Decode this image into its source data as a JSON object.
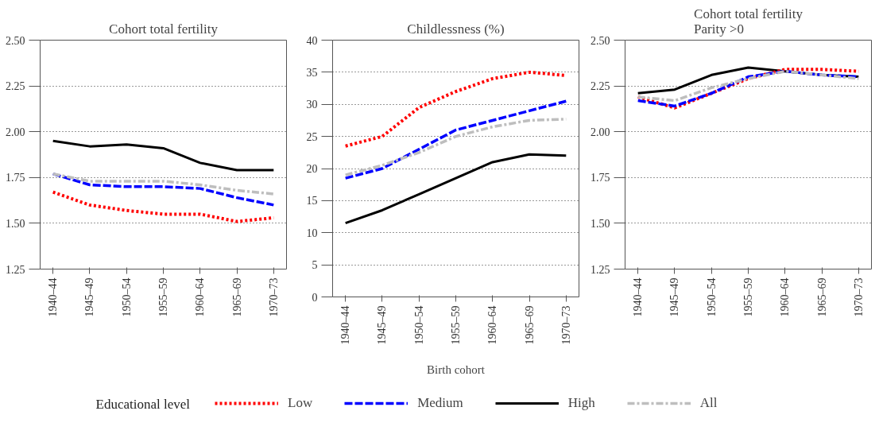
{
  "chart_data": [
    {
      "type": "line",
      "title": "Cohort total fertility",
      "categories": [
        "1940–44",
        "1945–49",
        "1950–54",
        "1955–59",
        "1960–64",
        "1965–69",
        "1970–73"
      ],
      "ylim": [
        1.25,
        2.5
      ],
      "yticks": [
        1.25,
        {
          "value": 1.5,
          "label": "1.50"
        },
        1.75,
        {
          "value": 2.0,
          "label": "2.00"
        },
        2.25,
        {
          "value": 2.5,
          "label": "2.50"
        }
      ],
      "grid": "y",
      "legend": false,
      "series": [
        {
          "color": "#ff0000",
          "line_style": "dotted",
          "values": [
            1.67,
            1.6,
            1.57,
            1.55,
            1.55,
            1.51,
            1.53
          ]
        },
        {
          "color": "#0000ff",
          "line_style": "dashed",
          "values": [
            1.77,
            1.71,
            1.7,
            1.7,
            1.69,
            1.64,
            1.6
          ]
        },
        {
          "color": "#000000",
          "line_style": "solid",
          "values": [
            1.95,
            1.92,
            1.93,
            1.91,
            1.83,
            1.79,
            1.79
          ]
        },
        {
          "color": "#bebebe",
          "line_style": "dashdot",
          "values": [
            1.77,
            1.73,
            1.73,
            1.73,
            1.71,
            1.68,
            1.66
          ]
        }
      ]
    },
    {
      "type": "line",
      "title": "Childlessness (%)",
      "xlabel": "Birth cohort",
      "legend_title": "Educational level",
      "categories": [
        "1940–44",
        "1945–49",
        "1950–54",
        "1955–59",
        "1960–64",
        "1965–69",
        "1970–73"
      ],
      "ylim": [
        0,
        40
      ],
      "yticks": [
        0,
        5,
        10,
        15,
        20,
        25,
        30,
        35,
        40
      ],
      "grid": "y",
      "legend": "bottom",
      "series": [
        {
          "name": "Low",
          "color": "#ff0000",
          "line_style": "dotted",
          "values": [
            23.5,
            25,
            29.5,
            32,
            34,
            35,
            34.5
          ]
        },
        {
          "name": "Medium",
          "color": "#0000ff",
          "line_style": "dashed",
          "values": [
            18.5,
            20,
            23,
            26,
            27.5,
            29,
            30.5
          ]
        },
        {
          "name": "High",
          "color": "#000000",
          "line_style": "solid",
          "values": [
            11.5,
            13.5,
            16,
            18.5,
            21,
            22.2,
            22
          ]
        },
        {
          "name": "All",
          "color": "#bebebe",
          "line_style": "dashdot",
          "values": [
            19,
            20.5,
            22.5,
            25,
            26.5,
            27.5,
            27.7
          ]
        }
      ]
    },
    {
      "type": "line",
      "title": "Cohort total fertility\nParity >0",
      "categories": [
        "1940–44",
        "1945–49",
        "1950–54",
        "1955–59",
        "1960–64",
        "1965–69",
        "1970–73"
      ],
      "ylim": [
        1.25,
        2.5
      ],
      "yticks": [
        1.25,
        {
          "value": 1.5,
          "label": "1.50"
        },
        1.75,
        {
          "value": 2.0,
          "label": "2.00"
        },
        2.25,
        {
          "value": 2.5,
          "label": "2.50"
        }
      ],
      "grid": "y",
      "legend": false,
      "series": [
        {
          "color": "#ff0000",
          "line_style": "dotted",
          "values": [
            2.19,
            2.13,
            2.21,
            2.29,
            2.34,
            2.34,
            2.33
          ]
        },
        {
          "color": "#0000ff",
          "line_style": "dashed",
          "values": [
            2.17,
            2.14,
            2.21,
            2.3,
            2.33,
            2.31,
            2.3
          ]
        },
        {
          "color": "#000000",
          "line_style": "solid",
          "values": [
            2.21,
            2.23,
            2.31,
            2.35,
            2.33,
            2.31,
            2.3
          ]
        },
        {
          "color": "#bebebe",
          "line_style": "dashdot",
          "values": [
            2.19,
            2.17,
            2.24,
            2.29,
            2.33,
            2.31,
            2.29
          ]
        }
      ]
    }
  ]
}
